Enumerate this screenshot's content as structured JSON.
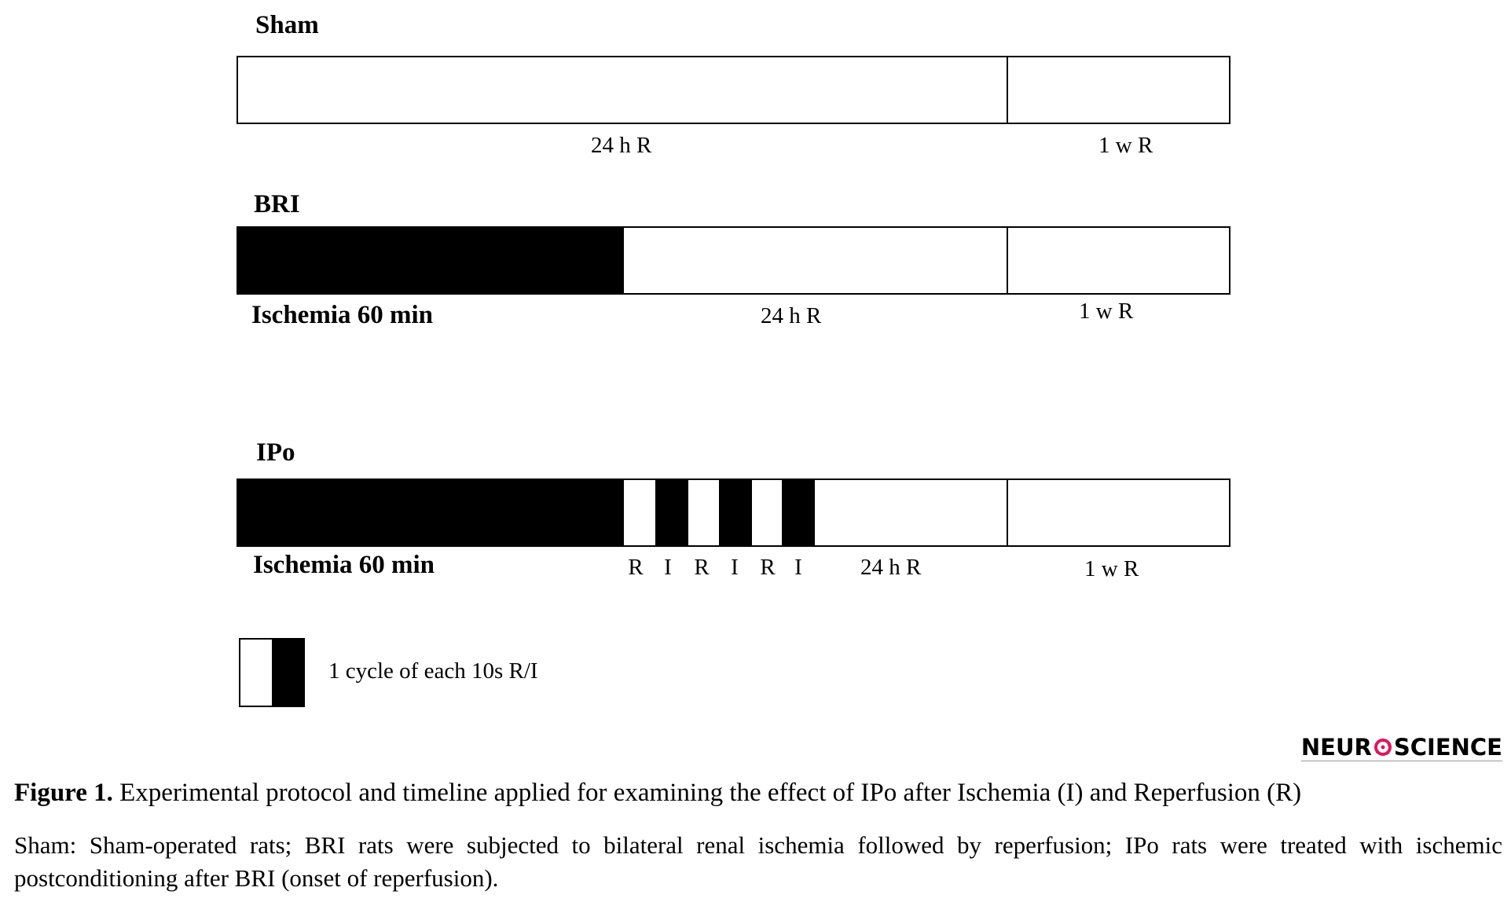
{
  "groups": {
    "sham": {
      "title": "Sham",
      "label_24h": "24 h R",
      "label_1w": "1 w R"
    },
    "bri": {
      "title": "BRI",
      "label_ischemia": "Ischemia 60 min",
      "label_24h": "24 h R",
      "label_1w": "1 w R"
    },
    "ipo": {
      "title": "IPo",
      "label_ischemia": "Ischemia 60 min",
      "cycle_letters": [
        "R",
        "I",
        "R",
        "I",
        "R",
        "I"
      ],
      "label_24h": "24 h R",
      "label_1w": "1 w R"
    }
  },
  "legend": {
    "text": "1 cycle of each 10s R/I"
  },
  "logo": {
    "text_left": "NEUR",
    "text_right": "SCIENCE",
    "icon": "brain-o-icon",
    "accent_color": "#e0175a"
  },
  "caption": {
    "title": "Figure 1.",
    "text": " Experimental protocol and timeline applied for examining the effect of IPo after Ischemia (I) and Reperfusion (R)",
    "note": "Sham: Sham-operated rats; BRI rats were subjected to bilateral renal ischemia followed by reperfusion; IPo rats were treated with ischemic postconditioning after BRI (onset of reperfusion)."
  },
  "colors": {
    "ischemia": "#000000",
    "reperfusion": "#ffffff",
    "outline": "#000000"
  }
}
